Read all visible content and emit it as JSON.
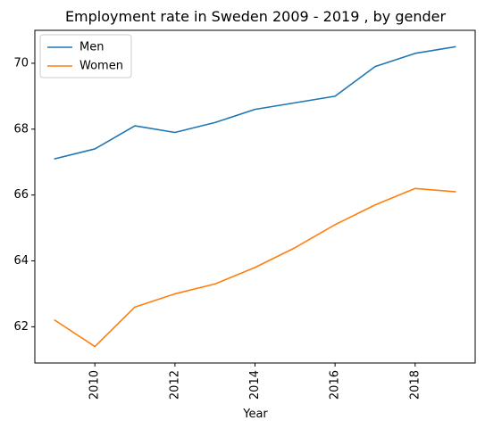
{
  "chart_data": {
    "type": "line",
    "title": "Employment rate in Sweden 2009 - 2019 , by gender",
    "xlabel": "Year",
    "ylabel": "",
    "x": [
      2009,
      2010,
      2011,
      2012,
      2013,
      2014,
      2015,
      2016,
      2017,
      2018,
      2019
    ],
    "xlim": [
      2008.5,
      2019.5
    ],
    "ylim": [
      60.9,
      71.0
    ],
    "xticks": [
      2010,
      2012,
      2014,
      2016,
      2018
    ],
    "yticks": [
      62,
      64,
      66,
      68,
      70
    ],
    "x_tick_rotation": "vertical",
    "grid": false,
    "legend": "top-left",
    "series": [
      {
        "name": "Men",
        "color": "#1f77b4",
        "values": [
          67.1,
          67.4,
          68.1,
          67.9,
          68.2,
          68.6,
          68.8,
          69.0,
          69.9,
          70.3,
          70.5
        ]
      },
      {
        "name": "Women",
        "color": "#ff7f0e",
        "values": [
          62.2,
          61.4,
          62.6,
          63.0,
          63.3,
          63.8,
          64.4,
          65.1,
          65.7,
          66.2,
          66.1
        ]
      }
    ]
  }
}
